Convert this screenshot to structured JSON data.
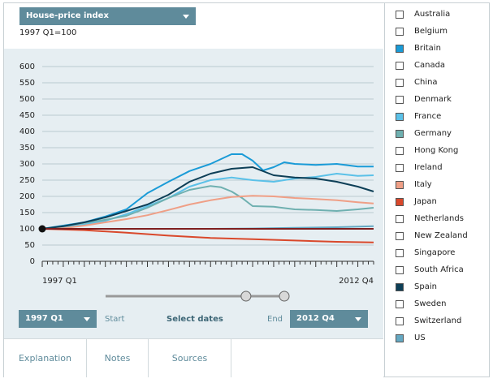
{
  "header": {
    "metric_select": "House-price index",
    "baseline": "1997 Q1=100"
  },
  "controls": {
    "start_value": "1997 Q1",
    "start_label": "Start",
    "select_dates_label": "Select dates",
    "end_label": "End",
    "end_value": "2012 Q4",
    "slider_start": 0.82,
    "slider_end": 1.0
  },
  "tabs": [
    "Explanation",
    "Notes",
    "Sources"
  ],
  "colors": {
    "accent": "#5f8b9b",
    "plot_bg": "#e6eef2",
    "Britain": "#1a9bd7",
    "France": "#5bc1e8",
    "Germany": "#6fb0b0",
    "Italy": "#ef9f86",
    "Japan": "#d9482b",
    "Spain": "#0d3f57",
    "US": "#64a8c2",
    "Baseline": "#7f1f1f"
  },
  "legend": [
    {
      "name": "Australia",
      "color": "#ffffff"
    },
    {
      "name": "Belgium",
      "color": "#ffffff"
    },
    {
      "name": "Britain",
      "color": "#1a9bd7"
    },
    {
      "name": "Canada",
      "color": "#ffffff"
    },
    {
      "name": "China",
      "color": "#ffffff"
    },
    {
      "name": "Denmark",
      "color": "#ffffff"
    },
    {
      "name": "France",
      "color": "#5bc1e8"
    },
    {
      "name": "Germany",
      "color": "#6fb0b0"
    },
    {
      "name": "Hong Kong",
      "color": "#ffffff"
    },
    {
      "name": "Ireland",
      "color": "#ffffff"
    },
    {
      "name": "Italy",
      "color": "#ef9f86"
    },
    {
      "name": "Japan",
      "color": "#d9482b"
    },
    {
      "name": "Netherlands",
      "color": "#ffffff"
    },
    {
      "name": "New Zealand",
      "color": "#ffffff"
    },
    {
      "name": "Singapore",
      "color": "#ffffff"
    },
    {
      "name": "South Africa",
      "color": "#ffffff"
    },
    {
      "name": "Spain",
      "color": "#0d3f57"
    },
    {
      "name": "Sweden",
      "color": "#ffffff"
    },
    {
      "name": "Switzerland",
      "color": "#ffffff"
    },
    {
      "name": "US",
      "color": "#64a8c2"
    }
  ],
  "chart_data": {
    "type": "line",
    "ylim": [
      0,
      600
    ],
    "yticks": [
      0,
      50,
      100,
      150,
      200,
      250,
      300,
      350,
      400,
      450,
      500,
      550,
      600
    ],
    "x_start": "1997 Q1",
    "x_end": "2012 Q4",
    "xlabels": [
      "1997 Q1",
      "2012 Q4"
    ],
    "quarters": 64,
    "baseline": 100,
    "grid": true,
    "series": [
      {
        "name": "Britain",
        "color": "#1a9bd7",
        "x": [
          0,
          4,
          8,
          12,
          16,
          20,
          24,
          28,
          32,
          36,
          38,
          40,
          42,
          44,
          46,
          48,
          52,
          56,
          60,
          63
        ],
        "values": [
          100,
          110,
          120,
          138,
          160,
          210,
          245,
          278,
          300,
          330,
          330,
          310,
          280,
          290,
          305,
          300,
          297,
          300,
          292,
          292
        ]
      },
      {
        "name": "France",
        "color": "#5bc1e8",
        "x": [
          0,
          4,
          8,
          12,
          16,
          20,
          24,
          28,
          32,
          36,
          40,
          44,
          48,
          52,
          56,
          60,
          63
        ],
        "values": [
          100,
          105,
          113,
          125,
          145,
          170,
          195,
          230,
          250,
          258,
          250,
          245,
          255,
          260,
          270,
          263,
          265
        ]
      },
      {
        "name": "Germany",
        "color": "#6fb0b0",
        "x": [
          0,
          4,
          8,
          12,
          16,
          20,
          24,
          28,
          32,
          34,
          36,
          38,
          40,
          44,
          48,
          52,
          56,
          60,
          63
        ],
        "values": [
          100,
          108,
          118,
          128,
          140,
          165,
          195,
          220,
          232,
          228,
          215,
          195,
          170,
          168,
          160,
          158,
          155,
          160,
          165
        ]
      },
      {
        "name": "Italy",
        "color": "#ef9f86",
        "x": [
          0,
          4,
          8,
          12,
          16,
          20,
          24,
          28,
          32,
          36,
          40,
          44,
          48,
          52,
          56,
          60,
          63
        ],
        "values": [
          100,
          102,
          110,
          120,
          130,
          142,
          158,
          175,
          188,
          198,
          202,
          200,
          195,
          192,
          188,
          182,
          178
        ]
      },
      {
        "name": "Japan",
        "color": "#d9482b",
        "x": [
          0,
          8,
          16,
          24,
          32,
          40,
          48,
          56,
          63
        ],
        "values": [
          100,
          96,
          88,
          79,
          72,
          68,
          64,
          60,
          58
        ]
      },
      {
        "name": "Spain",
        "color": "#0d3f57",
        "x": [
          0,
          4,
          8,
          12,
          16,
          20,
          24,
          28,
          32,
          36,
          40,
          44,
          48,
          52,
          56,
          60,
          63
        ],
        "values": [
          100,
          108,
          120,
          135,
          155,
          175,
          205,
          245,
          270,
          285,
          290,
          265,
          258,
          255,
          245,
          230,
          215
        ]
      },
      {
        "name": "US",
        "color": "#64a8c2",
        "x": [
          0,
          8,
          16,
          24,
          32,
          40,
          48,
          56,
          63
        ],
        "values": [
          100,
          100,
          100,
          100,
          100,
          101,
          103,
          105,
          108
        ]
      },
      {
        "name": "Baseline",
        "color": "#7f1f1f",
        "x": [
          0,
          63
        ],
        "values": [
          100,
          100
        ]
      }
    ]
  }
}
